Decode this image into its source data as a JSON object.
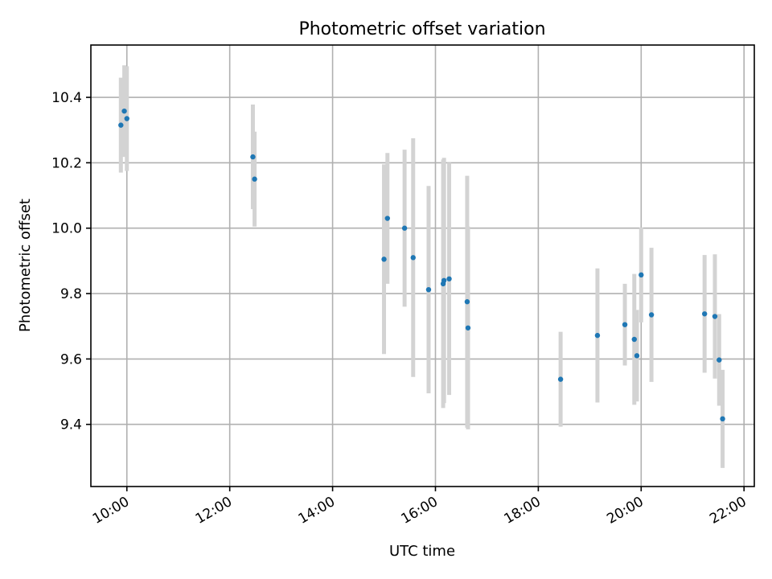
{
  "chart_data": {
    "type": "scatter",
    "title": "Photometric offset variation",
    "xlabel": "UTC time",
    "ylabel": "Photometric offset",
    "xlim": [
      "09:18",
      "22:12"
    ],
    "ylim": [
      9.21,
      10.56
    ],
    "x_ticks": [
      "10:00",
      "12:00",
      "14:00",
      "16:00",
      "18:00",
      "20:00",
      "22:00"
    ],
    "y_ticks": [
      "9.4",
      "9.6",
      "9.8",
      "10.0",
      "10.2",
      "10.4"
    ],
    "grid": true,
    "colors": {
      "points": "#1f77b4",
      "errorbars": "#d3d3d3"
    },
    "points": [
      {
        "x": "09:53",
        "y": 10.315,
        "err": 0.145
      },
      {
        "x": "09:57",
        "y": 10.358,
        "err": 0.14
      },
      {
        "x": "10:00",
        "y": 10.335,
        "err": 0.16
      },
      {
        "x": "12:27",
        "y": 10.218,
        "err": 0.16
      },
      {
        "x": "12:29",
        "y": 10.15,
        "err": 0.145
      },
      {
        "x": "15:00",
        "y": 9.905,
        "err": 0.29
      },
      {
        "x": "15:04",
        "y": 10.03,
        "err": 0.2
      },
      {
        "x": "15:24",
        "y": 10.0,
        "err": 0.24
      },
      {
        "x": "15:34",
        "y": 9.91,
        "err": 0.365
      },
      {
        "x": "15:52",
        "y": 9.812,
        "err": 0.317
      },
      {
        "x": "16:09",
        "y": 9.83,
        "err": 0.38
      },
      {
        "x": "16:10",
        "y": 9.84,
        "err": 0.375
      },
      {
        "x": "16:16",
        "y": 9.845,
        "err": 0.355
      },
      {
        "x": "16:37",
        "y": 9.775,
        "err": 0.385
      },
      {
        "x": "16:38",
        "y": 9.695,
        "err": 0.31
      },
      {
        "x": "18:26",
        "y": 9.538,
        "err": 0.145
      },
      {
        "x": "19:09",
        "y": 9.672,
        "err": 0.205
      },
      {
        "x": "19:41",
        "y": 9.705,
        "err": 0.125
      },
      {
        "x": "19:52",
        "y": 9.66,
        "err": 0.2
      },
      {
        "x": "19:55",
        "y": 9.61,
        "err": 0.14
      },
      {
        "x": "20:00",
        "y": 9.857,
        "err": 0.145
      },
      {
        "x": "20:12",
        "y": 9.735,
        "err": 0.205
      },
      {
        "x": "21:14",
        "y": 9.738,
        "err": 0.18
      },
      {
        "x": "21:26",
        "y": 9.73,
        "err": 0.19
      },
      {
        "x": "21:31",
        "y": 9.597,
        "err": 0.14
      },
      {
        "x": "21:35",
        "y": 9.417,
        "err": 0.15
      }
    ]
  }
}
